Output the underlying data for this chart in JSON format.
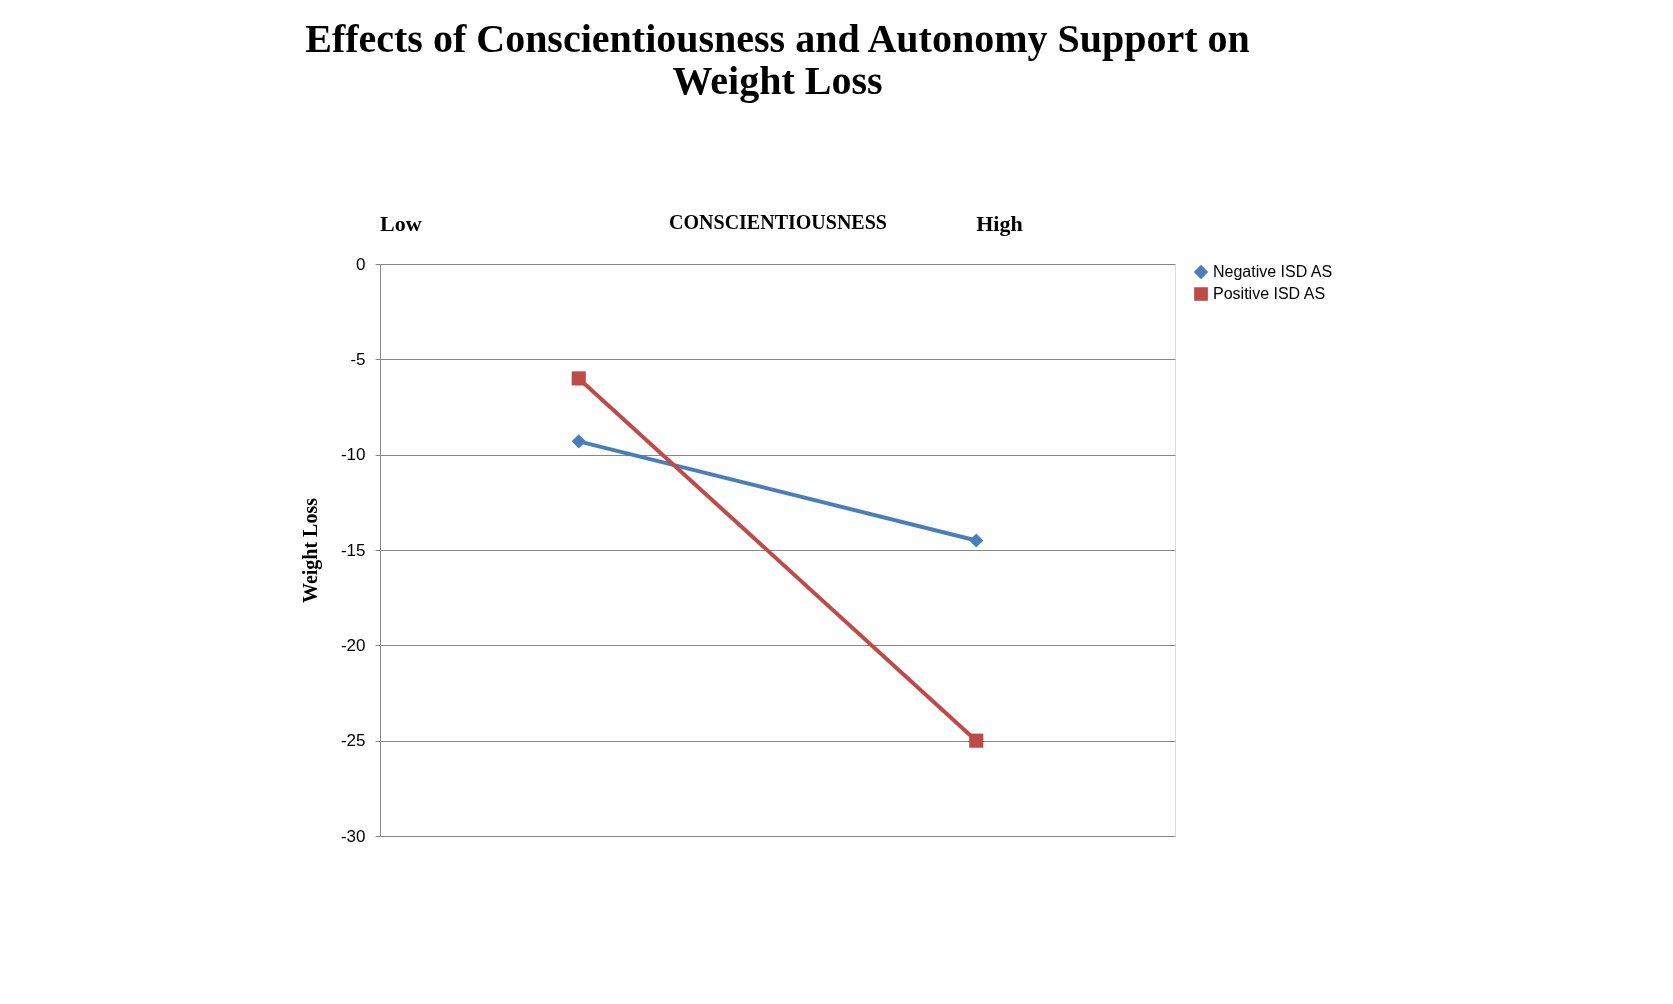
{
  "chart_data": {
    "type": "line",
    "title": "Effects of Conscientiousness and Autonomy Support on Weight Loss",
    "xlabel": "CONSCIENTIOUSNESS",
    "ylabel": "Weight Loss",
    "categories": [
      null,
      null
    ],
    "series": [
      {
        "name": "Negative ISD AS",
        "color": "#4a7ebb",
        "marker": "diamond",
        "values": [
          -9.3,
          -14.5
        ]
      },
      {
        "name": "Positive ISD AS",
        "color": "#be4b48",
        "marker": "square",
        "values": [
          -6,
          -25
        ]
      }
    ],
    "annotations": [
      "Low",
      "High"
    ],
    "ylim": [
      -30,
      0
    ],
    "yticks": [
      0,
      -5,
      -10,
      -15,
      -20,
      -25,
      -30
    ],
    "grid": "y",
    "legend": "right",
    "tick_labels": "y",
    "line_style": "solid"
  }
}
